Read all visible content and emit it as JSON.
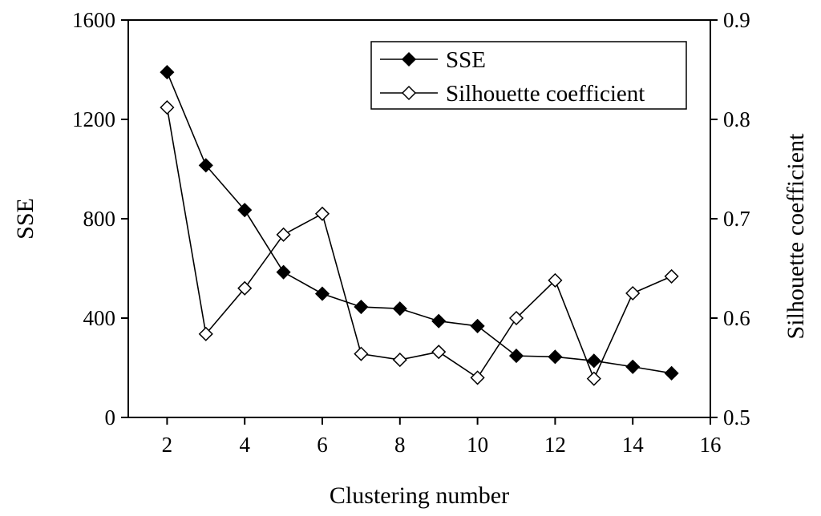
{
  "chart_data": {
    "type": "line",
    "title": "",
    "xlabel": "Clustering number",
    "ylabel": "SSE",
    "y2label": "Silhouette coefficient",
    "xlim": [
      1,
      16
    ],
    "ylim": [
      0,
      1600
    ],
    "y2lim": [
      0.5,
      0.9
    ],
    "xticks": [
      "2",
      "4",
      "6",
      "8",
      "10",
      "12",
      "14",
      "16"
    ],
    "yticks": [
      "0",
      "400",
      "800",
      "1200",
      "1600"
    ],
    "y2ticks": [
      "0.5",
      "0.6",
      "0.7",
      "0.8",
      "0.9"
    ],
    "x": [
      2,
      3,
      4,
      5,
      6,
      7,
      8,
      9,
      10,
      11,
      12,
      13,
      14,
      15
    ],
    "series": [
      {
        "name": "SSE",
        "axis": "left",
        "marker": "filled-diamond",
        "values": [
          1390,
          1015,
          835,
          585,
          498,
          445,
          438,
          388,
          368,
          248,
          244,
          228,
          204,
          178
        ]
      },
      {
        "name": "Silhouette coefficient",
        "axis": "right",
        "marker": "open-diamond",
        "values": [
          0.812,
          0.584,
          0.63,
          0.684,
          0.705,
          0.564,
          0.558,
          0.566,
          0.54,
          0.6,
          0.638,
          0.539,
          0.625,
          0.642
        ]
      }
    ],
    "legend": {
      "position": "top-right",
      "entries": [
        "SSE",
        "Silhouette coefficient"
      ]
    }
  }
}
